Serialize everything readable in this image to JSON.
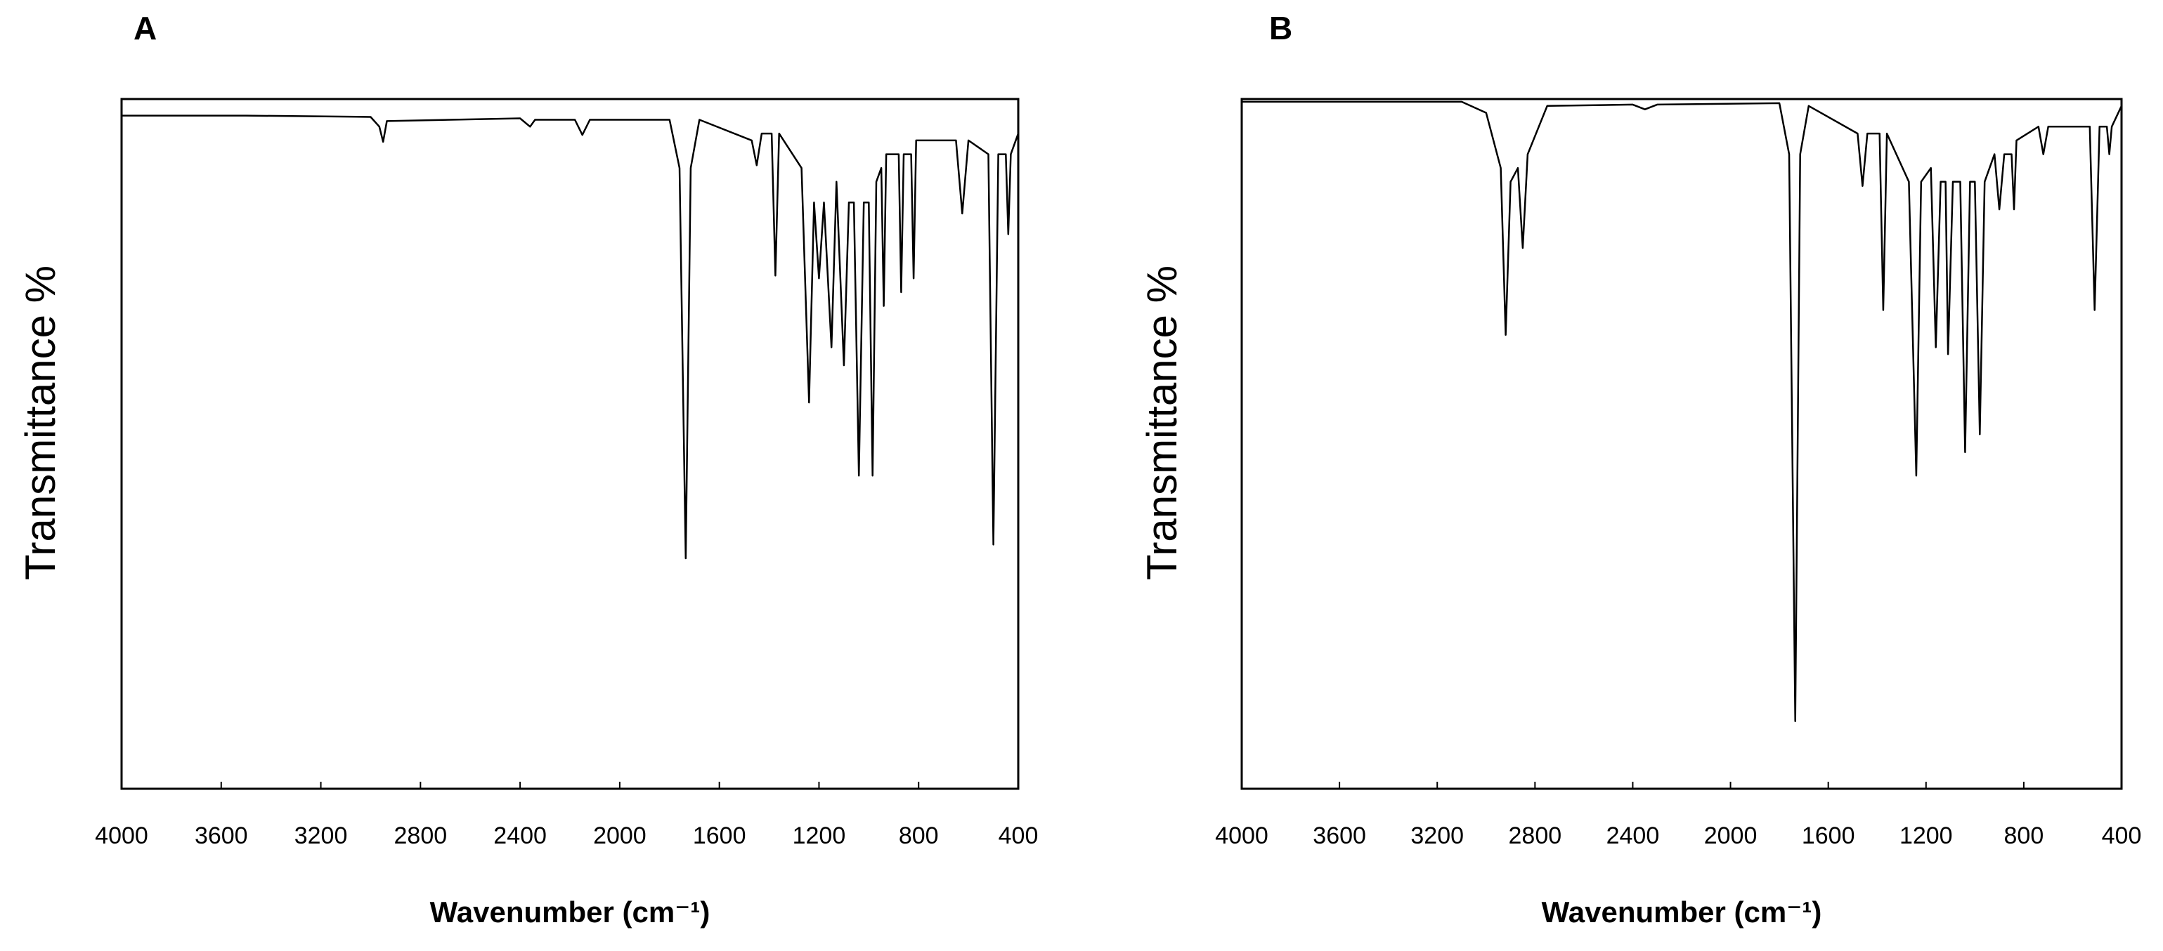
{
  "chart_data": [
    {
      "type": "line",
      "panel_label": "A",
      "x_label": "Wavenumber (cm⁻¹)",
      "y_label": "Transmittance %",
      "xlim": [
        4000,
        400
      ],
      "ylim": [
        0,
        100
      ],
      "xticks": [
        4000,
        3600,
        3200,
        2800,
        2400,
        2000,
        1600,
        1200,
        800,
        400
      ],
      "color": "#000000",
      "x": [
        4000,
        3500,
        3000,
        2965,
        2950,
        2935,
        2400,
        2360,
        2340,
        2180,
        2150,
        2120,
        1800,
        1760,
        1735,
        1715,
        1680,
        1470,
        1450,
        1430,
        1390,
        1375,
        1360,
        1270,
        1240,
        1220,
        1200,
        1180,
        1150,
        1130,
        1100,
        1080,
        1060,
        1040,
        1020,
        1000,
        985,
        970,
        950,
        940,
        930,
        880,
        870,
        860,
        830,
        820,
        810,
        650,
        625,
        600,
        520,
        500,
        480,
        450,
        440,
        430,
        400
      ],
      "values": [
        97.6,
        97.6,
        97.4,
        96,
        93.8,
        96.8,
        97.2,
        96,
        97,
        97,
        94.8,
        97,
        97,
        90,
        33.4,
        90,
        97,
        94,
        90.4,
        95,
        95,
        74.4,
        95,
        90,
        56,
        85,
        74,
        85,
        64,
        88,
        61.4,
        85,
        85,
        45.4,
        85,
        85,
        45.4,
        88,
        90,
        70,
        92,
        92,
        72,
        92,
        92,
        74,
        94,
        94,
        83.4,
        94,
        92,
        35.4,
        92,
        92,
        80.4,
        92,
        95
      ]
    },
    {
      "type": "line",
      "panel_label": "B",
      "x_label": "Wavenumber (cm⁻¹)",
      "y_label": "Transmittance %",
      "xlim": [
        4000,
        400
      ],
      "ylim": [
        0,
        100
      ],
      "xticks": [
        4000,
        3600,
        3200,
        2800,
        2400,
        2000,
        1600,
        1200,
        800,
        400
      ],
      "color": "#000000",
      "x": [
        4000,
        3100,
        3000,
        2940,
        2920,
        2900,
        2870,
        2850,
        2830,
        2750,
        2400,
        2350,
        2300,
        1800,
        1760,
        1735,
        1715,
        1680,
        1480,
        1460,
        1440,
        1390,
        1375,
        1360,
        1270,
        1240,
        1220,
        1180,
        1160,
        1140,
        1120,
        1110,
        1090,
        1060,
        1040,
        1020,
        1000,
        980,
        960,
        920,
        900,
        880,
        850,
        840,
        830,
        740,
        720,
        700,
        530,
        510,
        490,
        460,
        450,
        440,
        400
      ],
      "values": [
        99.6,
        99.6,
        98,
        90,
        65.8,
        88,
        90,
        78.4,
        92,
        99,
        99.2,
        98.5,
        99.2,
        99.4,
        92,
        9.8,
        92,
        99,
        95,
        87.4,
        95,
        95,
        69.4,
        95,
        88,
        45.4,
        88,
        90,
        64,
        88,
        88,
        63,
        88,
        88,
        48.8,
        88,
        88,
        51.4,
        88,
        92,
        84,
        92,
        92,
        84,
        94,
        96,
        92,
        96,
        96,
        69.4,
        96,
        96,
        92,
        96,
        99
      ]
    }
  ]
}
